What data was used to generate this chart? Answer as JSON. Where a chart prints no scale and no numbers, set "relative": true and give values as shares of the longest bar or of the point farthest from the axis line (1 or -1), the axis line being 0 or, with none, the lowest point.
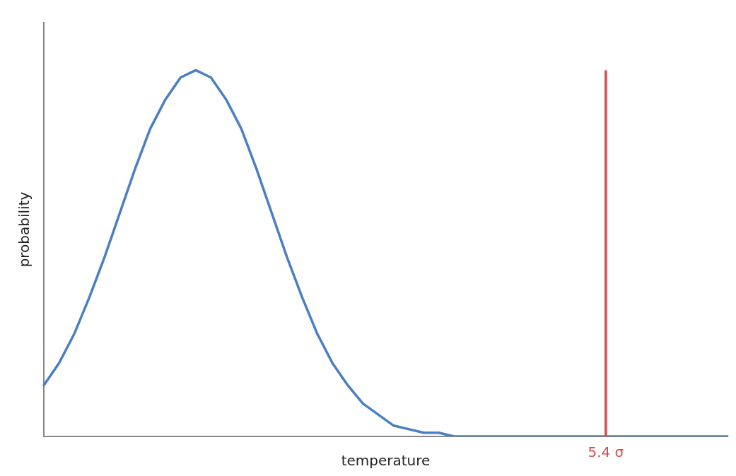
{
  "chart_data": {
    "type": "line",
    "relative": true,
    "xlabel": "temperature",
    "ylabel": "probability",
    "legend": false,
    "marker": "none",
    "line_style": "solid",
    "categories": [
      null,
      null,
      null,
      null,
      null,
      null,
      null,
      null,
      null,
      null,
      null,
      null,
      null,
      null,
      null,
      null,
      null,
      null,
      null,
      null,
      null,
      null,
      null,
      null,
      null,
      null,
      null,
      null,
      null,
      null,
      null,
      null,
      null,
      null,
      null,
      null,
      null,
      null,
      null,
      null,
      null,
      null,
      null,
      null,
      null,
      null
    ],
    "series": [
      {
        "color": "#4a7fc1",
        "values": [
          0.14,
          0.2,
          0.28,
          0.38,
          0.49,
          0.61,
          0.73,
          0.84,
          0.92,
          0.98,
          1,
          0.98,
          0.92,
          0.84,
          0.73,
          0.61,
          0.49,
          0.38,
          0.28,
          0.2,
          0.14,
          0.09,
          0.06,
          0.03,
          0.02,
          0.01,
          0.01,
          0,
          0,
          0,
          0,
          0,
          0,
          0,
          0,
          0,
          0,
          0,
          0,
          0,
          0,
          0,
          0,
          0,
          0,
          0
        ]
      }
    ],
    "annotations": [
      "5.4 σ"
    ]
  }
}
